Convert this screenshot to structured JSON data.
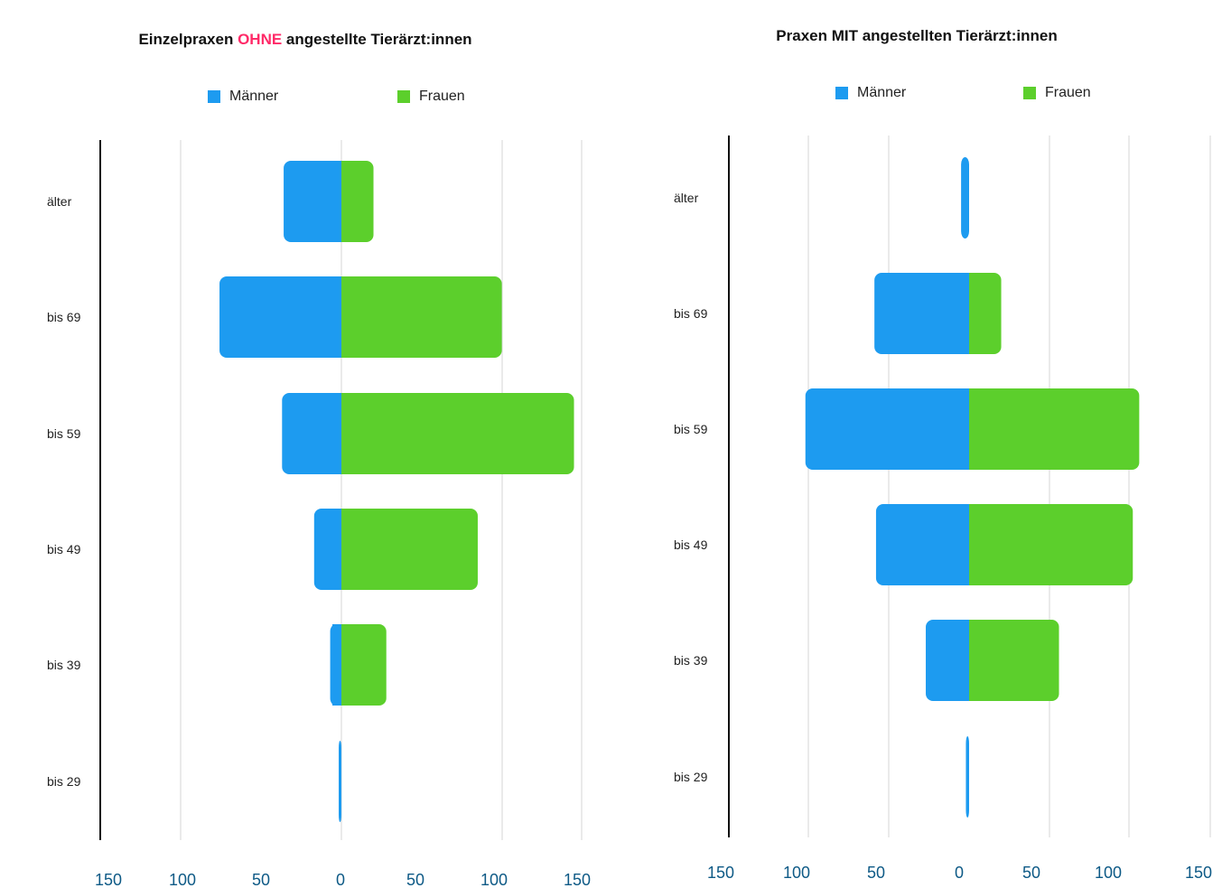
{
  "colors": {
    "maenner": "#1d9bf0",
    "frauen": "#5ccf2c",
    "title_highlight": "#ff2a68",
    "tick": "#0e5a86"
  },
  "chart_data": [
    {
      "type": "bar",
      "orientation": "horizontal-butterfly",
      "title_parts": [
        "Einzelpraxen ",
        "OHNE",
        " angestellte Tierärzt:innen"
      ],
      "categories": [
        "älter",
        "bis 69",
        "bis 59",
        "bis 49",
        "bis 39",
        "bis 29"
      ],
      "series": [
        {
          "name": "Männer",
          "direction": "left",
          "values": [
            36,
            76,
            37,
            17,
            7,
            1
          ]
        },
        {
          "name": "Frauen",
          "direction": "right",
          "values": [
            20,
            100,
            145,
            85,
            28,
            0
          ]
        }
      ],
      "xticks": [
        "150",
        "100",
        "50",
        "0",
        "50",
        "100",
        "150"
      ],
      "xlim": [
        -150,
        150
      ],
      "grid": true,
      "legend_position": "top"
    },
    {
      "type": "bar",
      "orientation": "horizontal-butterfly",
      "title_parts": [
        "Praxen MIT angestellten Tierärzt:innen"
      ],
      "categories": [
        "älter",
        "bis 69",
        "bis 59",
        "bis 49",
        "bis 39",
        "bis 29"
      ],
      "series": [
        {
          "name": "Männer",
          "direction": "left",
          "values": [
            5,
            59,
            102,
            58,
            27,
            2
          ]
        },
        {
          "name": "Frauen",
          "direction": "right",
          "values": [
            0,
            20,
            106,
            102,
            56,
            0
          ]
        }
      ],
      "xticks": [
        "150",
        "100",
        "50",
        "0",
        "50",
        "100",
        "150"
      ],
      "xlim": [
        -150,
        150
      ],
      "grid": true,
      "legend_position": "top"
    }
  ]
}
